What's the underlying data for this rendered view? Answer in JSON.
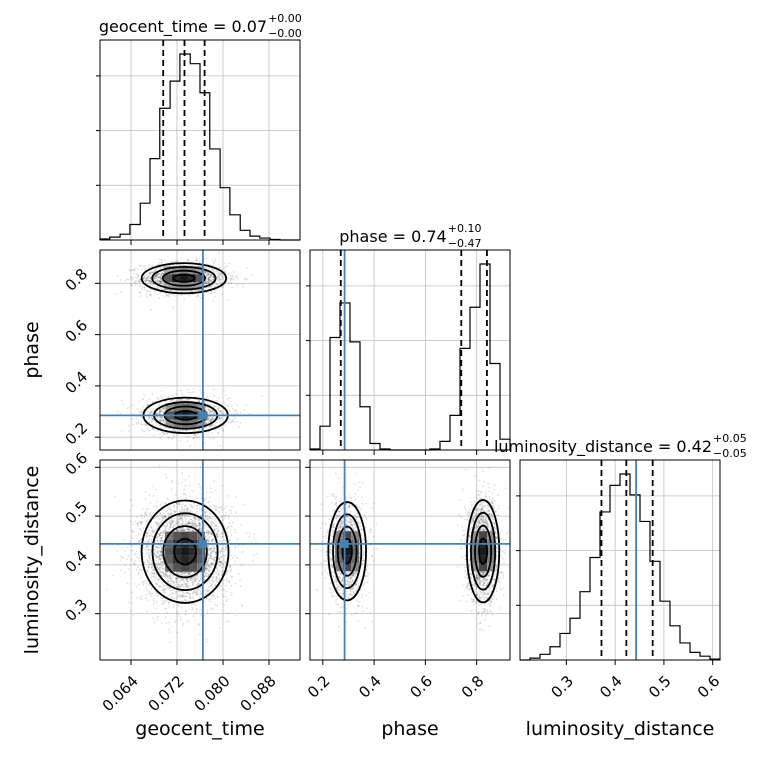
{
  "chart_data": {
    "type": "corner",
    "parameters": [
      "geocent_time",
      "phase",
      "luminosity_distance"
    ],
    "ranges": {
      "geocent_time": [
        0.0586,
        0.0934
      ],
      "phase": [
        0.15,
        0.93
      ],
      "luminosity_distance": [
        0.205,
        0.615
      ]
    },
    "ticks": {
      "geocent_time": [
        "0.064",
        "0.072",
        "0.080",
        "0.088"
      ],
      "phase": [
        "0.2",
        "0.4",
        "0.6",
        "0.8"
      ],
      "luminosity_distance": [
        "0.3",
        "0.4",
        "0.5",
        "0.6"
      ]
    },
    "tick_values": {
      "geocent_time": [
        0.064,
        0.072,
        0.08,
        0.088
      ],
      "phase": [
        0.2,
        0.4,
        0.6,
        0.8
      ],
      "luminosity_distance": [
        0.3,
        0.4,
        0.5,
        0.6
      ]
    },
    "truths": {
      "geocent_time": 0.0765,
      "phase": 0.285,
      "luminosity_distance": 0.443
    },
    "truth_color": "#4682b4",
    "titles": {
      "geocent_time": {
        "main": "geocent_time = 0.07",
        "sup": "+0.00",
        "sub": "−0.00"
      },
      "phase": {
        "main": "phase = 0.74",
        "sup": "+0.10",
        "sub": "−0.47"
      },
      "luminosity_distance": {
        "main": "luminosity_distance = 0.42",
        "sup": "+0.05",
        "sub": "−0.05"
      }
    },
    "quantiles": {
      "geocent_time": [
        0.0696,
        0.0733,
        0.0768
      ],
      "phase": [
        0.27,
        0.74,
        0.84
      ],
      "luminosity_distance": [
        0.372,
        0.423,
        0.477
      ]
    },
    "histograms": {
      "geocent_time": {
        "edges": [
          0.0586,
          0.0603,
          0.0621,
          0.0638,
          0.0656,
          0.0673,
          0.069,
          0.0708,
          0.0725,
          0.0743,
          0.076,
          0.0777,
          0.0795,
          0.0812,
          0.083,
          0.0847,
          0.0864,
          0.0882,
          0.0899,
          0.0917,
          0.0934
        ],
        "counts": [
          0.5,
          1.5,
          3,
          8,
          19,
          42,
          68,
          82,
          96,
          91,
          76,
          47,
          27,
          13,
          5,
          2,
          1,
          0.3,
          0,
          0
        ]
      },
      "phase": {
        "edges": [
          0.15,
          0.189,
          0.228,
          0.267,
          0.306,
          0.345,
          0.384,
          0.423,
          0.462,
          0.501,
          0.54,
          0.579,
          0.618,
          0.657,
          0.696,
          0.735,
          0.774,
          0.813,
          0.852,
          0.891,
          0.93
        ],
        "counts": [
          0.5,
          11,
          52,
          68,
          50,
          20,
          3,
          0.5,
          0,
          0,
          0,
          0,
          0.5,
          4,
          16,
          47,
          66,
          86,
          40,
          5
        ]
      },
      "luminosity_distance": {
        "edges": [
          0.205,
          0.2255,
          0.246,
          0.2665,
          0.287,
          0.3075,
          0.328,
          0.3485,
          0.369,
          0.3895,
          0.41,
          0.4305,
          0.451,
          0.4715,
          0.492,
          0.5125,
          0.533,
          0.5535,
          0.574,
          0.5945,
          0.615
        ],
        "counts": [
          0,
          1,
          3,
          7,
          14,
          22,
          36,
          54,
          78,
          92,
          98,
          87,
          73,
          52,
          31,
          18,
          9,
          4,
          2,
          0.5
        ]
      }
    },
    "modes_2d": {
      "geocent_time__phase": [
        {
          "x": 0.0732,
          "y": 0.82,
          "sx": 0.0035,
          "sy": 0.028,
          "weight": 0.55
        },
        {
          "x": 0.0735,
          "y": 0.285,
          "sx": 0.0035,
          "sy": 0.033,
          "weight": 0.45
        }
      ],
      "geocent_time__luminosity_distance": [
        {
          "x": 0.0734,
          "y": 0.427,
          "sx": 0.0036,
          "sy": 0.05,
          "weight": 1.0
        }
      ],
      "phase__luminosity_distance": [
        {
          "x": 0.295,
          "y": 0.428,
          "sx": 0.035,
          "sy": 0.048,
          "weight": 0.45
        },
        {
          "x": 0.825,
          "y": 0.428,
          "sx": 0.03,
          "sy": 0.05,
          "weight": 0.55
        }
      ]
    },
    "grid": true
  }
}
